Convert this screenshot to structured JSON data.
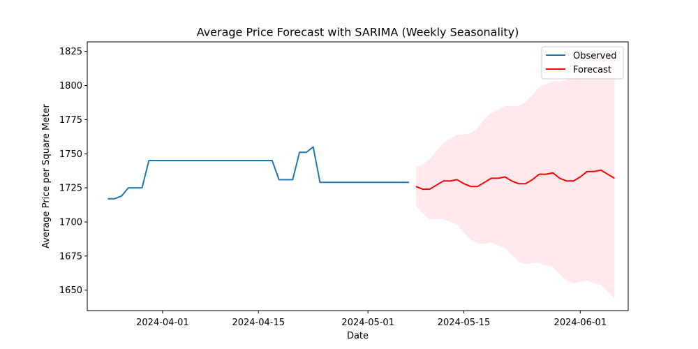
{
  "chart_data": {
    "type": "line",
    "title": "Average Price Forecast with SARIMA (Weekly Seasonality)",
    "xlabel": "Date",
    "ylabel": "Average Price per Square Meter",
    "xlim": [
      "2024-03-21",
      "2024-06-08"
    ],
    "ylim": [
      1635,
      1832
    ],
    "x_ticks": [
      {
        "date": "2024-04-01",
        "label": "2024-04-01"
      },
      {
        "date": "2024-04-15",
        "label": "2024-04-15"
      },
      {
        "date": "2024-05-01",
        "label": "2024-05-01"
      },
      {
        "date": "2024-05-15",
        "label": "2024-05-15"
      },
      {
        "date": "2024-06-01",
        "label": "2024-06-01"
      }
    ],
    "y_ticks": [
      1650,
      1675,
      1700,
      1725,
      1750,
      1775,
      1800,
      1825
    ],
    "grid": false,
    "legend_position": "top-right",
    "series": [
      {
        "name": "Observed",
        "color": "#1f77b4",
        "points": [
          [
            "2024-03-24",
            1717
          ],
          [
            "2024-03-25",
            1717
          ],
          [
            "2024-03-26",
            1719
          ],
          [
            "2024-03-27",
            1725
          ],
          [
            "2024-03-28",
            1725
          ],
          [
            "2024-03-29",
            1725
          ],
          [
            "2024-03-30",
            1745
          ],
          [
            "2024-03-31",
            1745
          ],
          [
            "2024-04-17",
            1745
          ],
          [
            "2024-04-18",
            1731
          ],
          [
            "2024-04-19",
            1731
          ],
          [
            "2024-04-20",
            1731
          ],
          [
            "2024-04-21",
            1751
          ],
          [
            "2024-04-22",
            1751
          ],
          [
            "2024-04-23",
            1755
          ],
          [
            "2024-04-24",
            1729
          ],
          [
            "2024-05-07",
            1729
          ]
        ]
      },
      {
        "name": "Forecast",
        "color": "#ff0000",
        "points": [
          [
            "2024-05-08",
            1726
          ],
          [
            "2024-05-09",
            1724
          ],
          [
            "2024-05-10",
            1724
          ],
          [
            "2024-05-11",
            1727
          ],
          [
            "2024-05-12",
            1730
          ],
          [
            "2024-05-13",
            1730
          ],
          [
            "2024-05-14",
            1731
          ],
          [
            "2024-05-15",
            1728
          ],
          [
            "2024-05-16",
            1726
          ],
          [
            "2024-05-17",
            1726
          ],
          [
            "2024-05-18",
            1729
          ],
          [
            "2024-05-19",
            1732
          ],
          [
            "2024-05-20",
            1732
          ],
          [
            "2024-05-21",
            1733
          ],
          [
            "2024-05-22",
            1730
          ],
          [
            "2024-05-23",
            1728
          ],
          [
            "2024-05-24",
            1728
          ],
          [
            "2024-05-25",
            1731
          ],
          [
            "2024-05-26",
            1735
          ],
          [
            "2024-05-27",
            1735
          ],
          [
            "2024-05-28",
            1736
          ],
          [
            "2024-05-29",
            1732
          ],
          [
            "2024-05-30",
            1730
          ],
          [
            "2024-05-31",
            1730
          ],
          [
            "2024-06-01",
            1733
          ],
          [
            "2024-06-02",
            1737
          ],
          [
            "2024-06-03",
            1737
          ],
          [
            "2024-06-04",
            1738
          ],
          [
            "2024-06-05",
            1735
          ],
          [
            "2024-06-06",
            1732
          ]
        ]
      }
    ],
    "confidence_band": {
      "color": "#ffc0cb",
      "opacity": 0.35,
      "upper": [
        [
          "2024-05-08",
          1740
        ],
        [
          "2024-05-09",
          1742
        ],
        [
          "2024-05-10",
          1746
        ],
        [
          "2024-05-11",
          1752
        ],
        [
          "2024-05-12",
          1758
        ],
        [
          "2024-05-13",
          1761
        ],
        [
          "2024-05-14",
          1764
        ],
        [
          "2024-05-15",
          1764
        ],
        [
          "2024-05-16",
          1765
        ],
        [
          "2024-05-17",
          1769
        ],
        [
          "2024-05-18",
          1775
        ],
        [
          "2024-05-19",
          1780
        ],
        [
          "2024-05-20",
          1782
        ],
        [
          "2024-05-21",
          1785
        ],
        [
          "2024-05-22",
          1785
        ],
        [
          "2024-05-23",
          1785
        ],
        [
          "2024-05-24",
          1788
        ],
        [
          "2024-05-25",
          1793
        ],
        [
          "2024-05-26",
          1799
        ],
        [
          "2024-05-27",
          1801
        ],
        [
          "2024-05-28",
          1803
        ],
        [
          "2024-05-29",
          1803
        ],
        [
          "2024-05-30",
          1804
        ],
        [
          "2024-05-31",
          1807
        ],
        [
          "2024-06-01",
          1812
        ],
        [
          "2024-06-02",
          1819
        ],
        [
          "2024-06-03",
          1821
        ],
        [
          "2024-06-04",
          1823
        ],
        [
          "2024-06-05",
          1823
        ],
        [
          "2024-06-06",
          1820
        ]
      ],
      "lower": [
        [
          "2024-05-08",
          1712
        ],
        [
          "2024-05-09",
          1706
        ],
        [
          "2024-05-10",
          1702
        ],
        [
          "2024-05-11",
          1702
        ],
        [
          "2024-05-12",
          1702
        ],
        [
          "2024-05-13",
          1700
        ],
        [
          "2024-05-14",
          1698
        ],
        [
          "2024-05-15",
          1692
        ],
        [
          "2024-05-16",
          1687
        ],
        [
          "2024-05-17",
          1684
        ],
        [
          "2024-05-18",
          1684
        ],
        [
          "2024-05-19",
          1685
        ],
        [
          "2024-05-20",
          1683
        ],
        [
          "2024-05-21",
          1681
        ],
        [
          "2024-05-22",
          1676
        ],
        [
          "2024-05-23",
          1671
        ],
        [
          "2024-05-24",
          1669
        ],
        [
          "2024-05-25",
          1670
        ],
        [
          "2024-05-26",
          1670
        ],
        [
          "2024-05-27",
          1668
        ],
        [
          "2024-05-28",
          1667
        ],
        [
          "2024-05-29",
          1662
        ],
        [
          "2024-05-30",
          1657
        ],
        [
          "2024-05-31",
          1655
        ],
        [
          "2024-06-01",
          1656
        ],
        [
          "2024-06-02",
          1657
        ],
        [
          "2024-06-03",
          1655
        ],
        [
          "2024-06-04",
          1654
        ],
        [
          "2024-06-05",
          1649
        ],
        [
          "2024-06-06",
          1644
        ]
      ]
    }
  }
}
